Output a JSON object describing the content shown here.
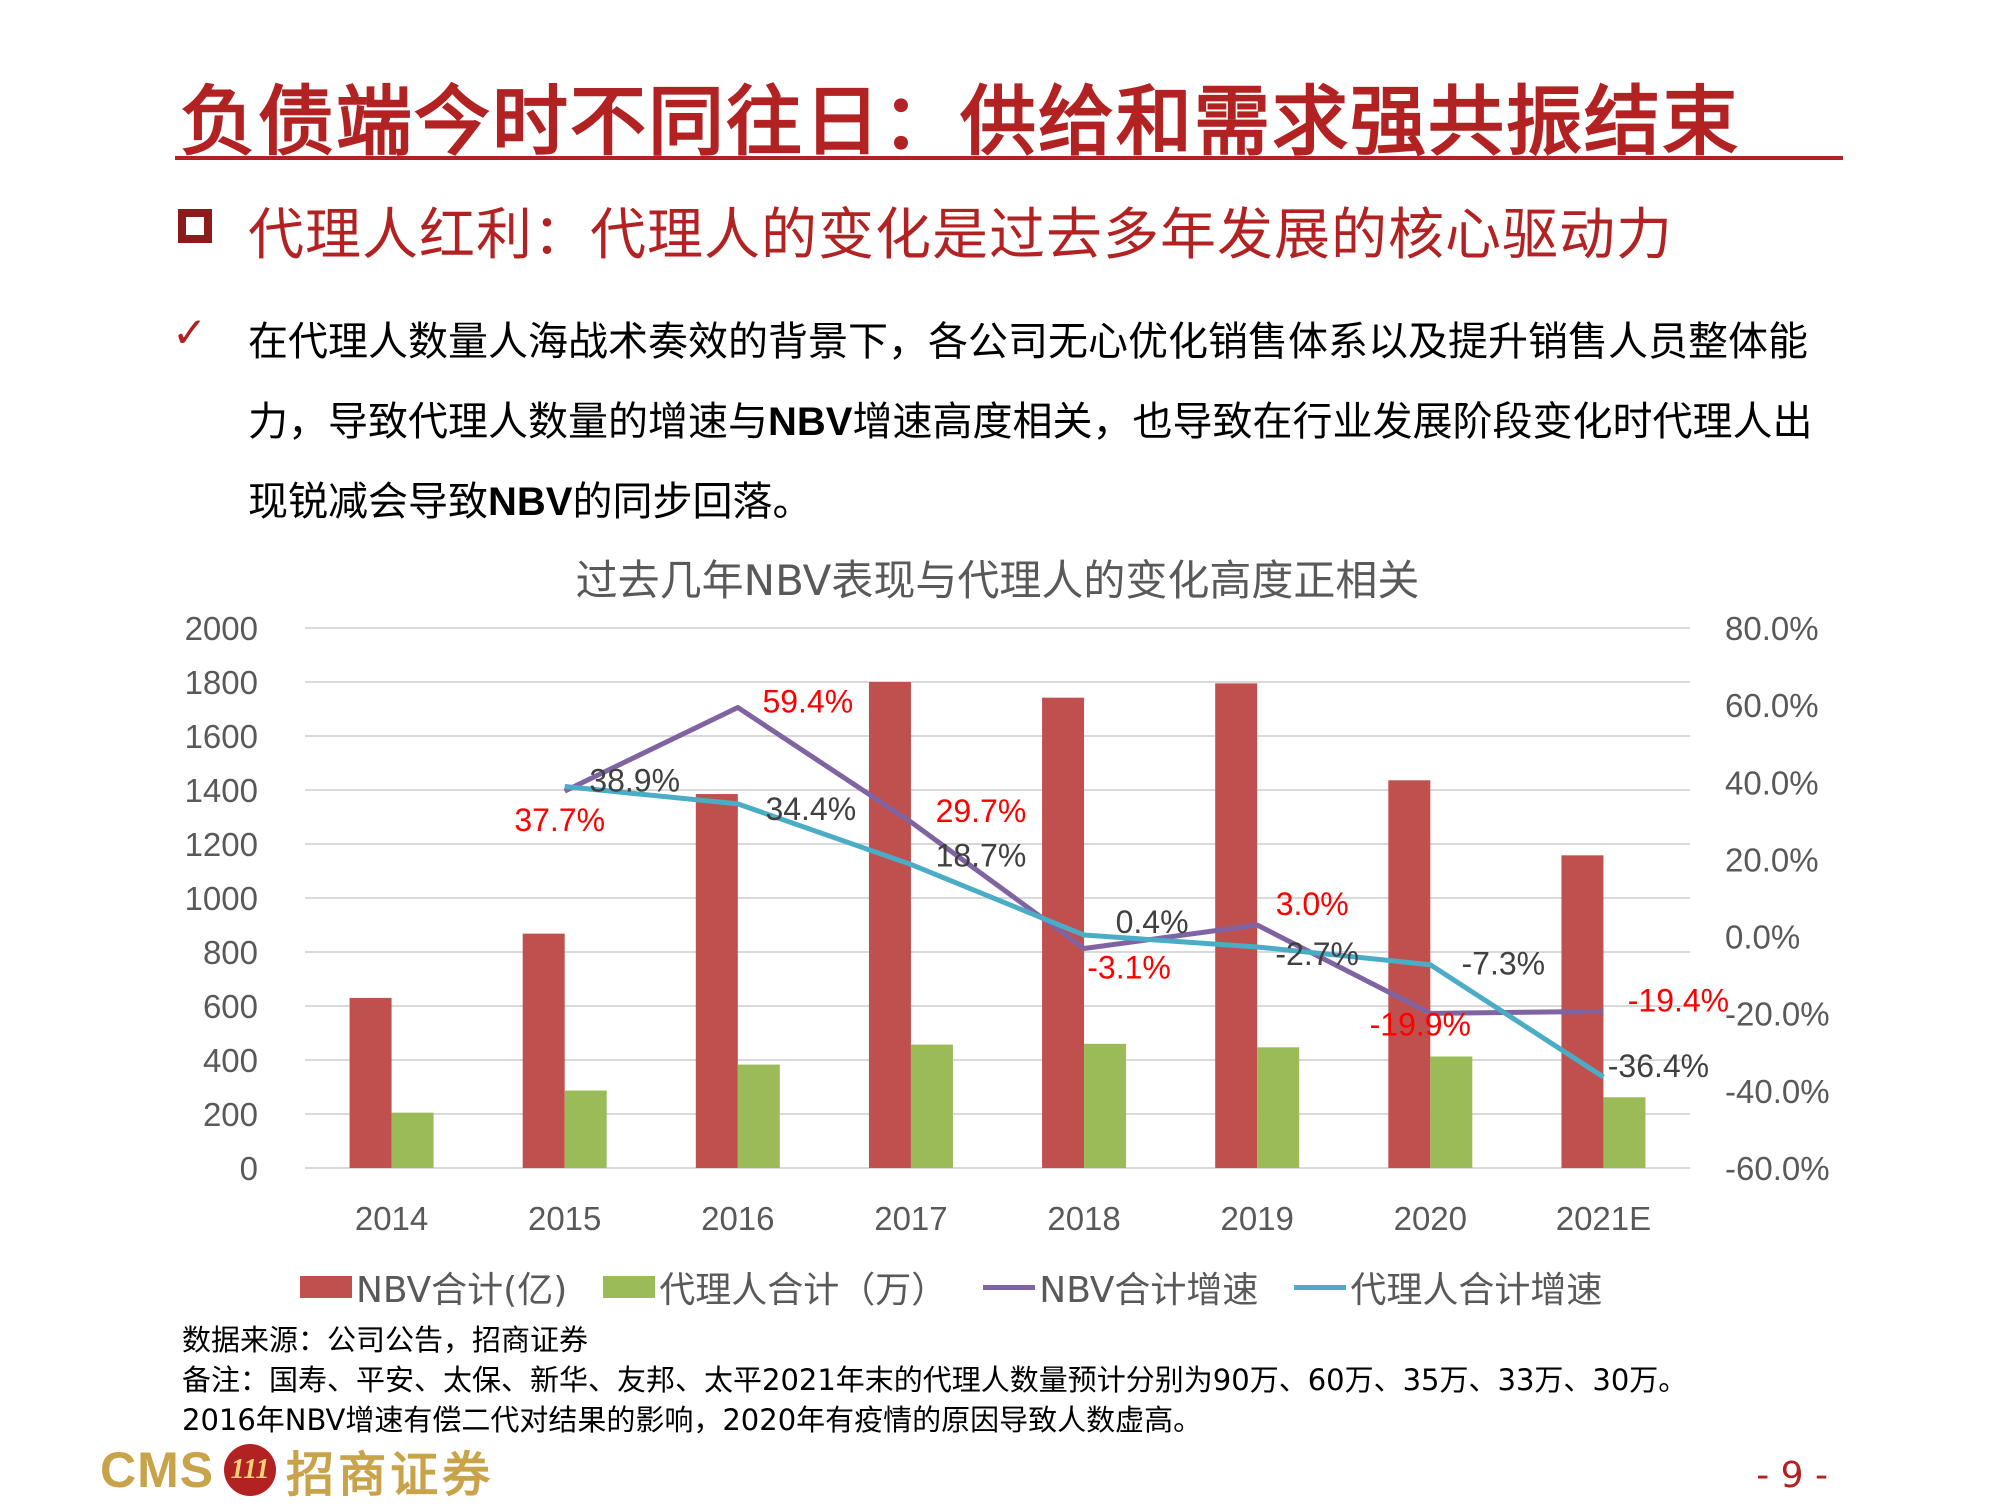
{
  "header": {
    "title": "负债端今时不同往日：供给和需求强共振结束",
    "subtitle": "代理人红利：代理人的变化是过去多年发展的核心驱动力"
  },
  "bullet": {
    "check": "✓",
    "text_parts": [
      "在代理人数量人海战术奏效的背景下，各公司无心优化销售体系以及提升销售人员整体能力，导致代理人数量的增速与",
      "NBV",
      "增速高度相关，也导致在行业发展阶段变化时代理人出现锐减会导致",
      "NBV",
      "的同步回落。"
    ]
  },
  "chart_data": {
    "type": "bar",
    "title": "过去几年NBV表现与代理人的变化高度正相关",
    "categories": [
      "2014",
      "2015",
      "2016",
      "2017",
      "2018",
      "2019",
      "2020",
      "2021E"
    ],
    "ylim": [
      0,
      2000
    ],
    "yticks": [
      "0",
      "200",
      "400",
      "600",
      "800",
      "1000",
      "1200",
      "1400",
      "1600",
      "1800",
      "2000"
    ],
    "y2lim": [
      -60,
      80
    ],
    "y2ticks": [
      "-60.0%",
      "-40.0%",
      "-20.0%",
      "0.0%",
      "20.0%",
      "40.0%",
      "60.0%",
      "80.0%"
    ],
    "grid": true,
    "legend": "bottom",
    "bar_series": [
      {
        "name": "NBV合计(亿)",
        "color": "#c0504d",
        "values": [
          630,
          868,
          1385,
          1800,
          1742,
          1795,
          1436,
          1158
        ]
      },
      {
        "name": "代理人合计（万）",
        "color": "#9bbb59",
        "values": [
          205,
          287,
          383,
          457,
          460,
          447,
          413,
          262
        ]
      }
    ],
    "line_series": [
      {
        "name": "NBV合计增速",
        "color": "#8064a2",
        "label_color": "#ff0000",
        "points": [
          [
            1,
            37.7
          ],
          [
            2,
            59.4
          ],
          [
            3,
            29.7
          ],
          [
            4,
            -3.1
          ],
          [
            5,
            3.0
          ],
          [
            6,
            -19.9
          ],
          [
            7,
            -19.4
          ]
        ],
        "labels": [
          "37.7%",
          "59.4%",
          "29.7%",
          "-3.1%",
          "3.0%",
          "-19.9%",
          "-19.4%"
        ]
      },
      {
        "name": "代理人合计增速",
        "color": "#4bacc6",
        "label_color": "#404040",
        "points": [
          [
            1,
            38.9
          ],
          [
            2,
            34.4
          ],
          [
            3,
            18.7
          ],
          [
            4,
            0.4
          ],
          [
            5,
            -2.7
          ],
          [
            6,
            -7.3
          ],
          [
            7,
            -36.4
          ]
        ],
        "labels": [
          "38.9%",
          "34.4%",
          "18.7%",
          "0.4%",
          "-2.7%",
          "-7.3%",
          "-36.4%"
        ]
      }
    ]
  },
  "notes": {
    "source": "数据来源：公司公告，招商证券",
    "remark": "备注：国寿、平安、太保、新华、友邦、太平2021年末的代理人数量预计分别为90万、60万、35万、33万、30万。",
    "remark2": "2016年NBV增速有偿二代对结果的影响，2020年有疫情的原因导致人数虚高。"
  },
  "footer": {
    "logo_cms": "CMS",
    "logo_emblem": "111",
    "logo_cn": "招商证券",
    "page_number": "- 9 -"
  }
}
